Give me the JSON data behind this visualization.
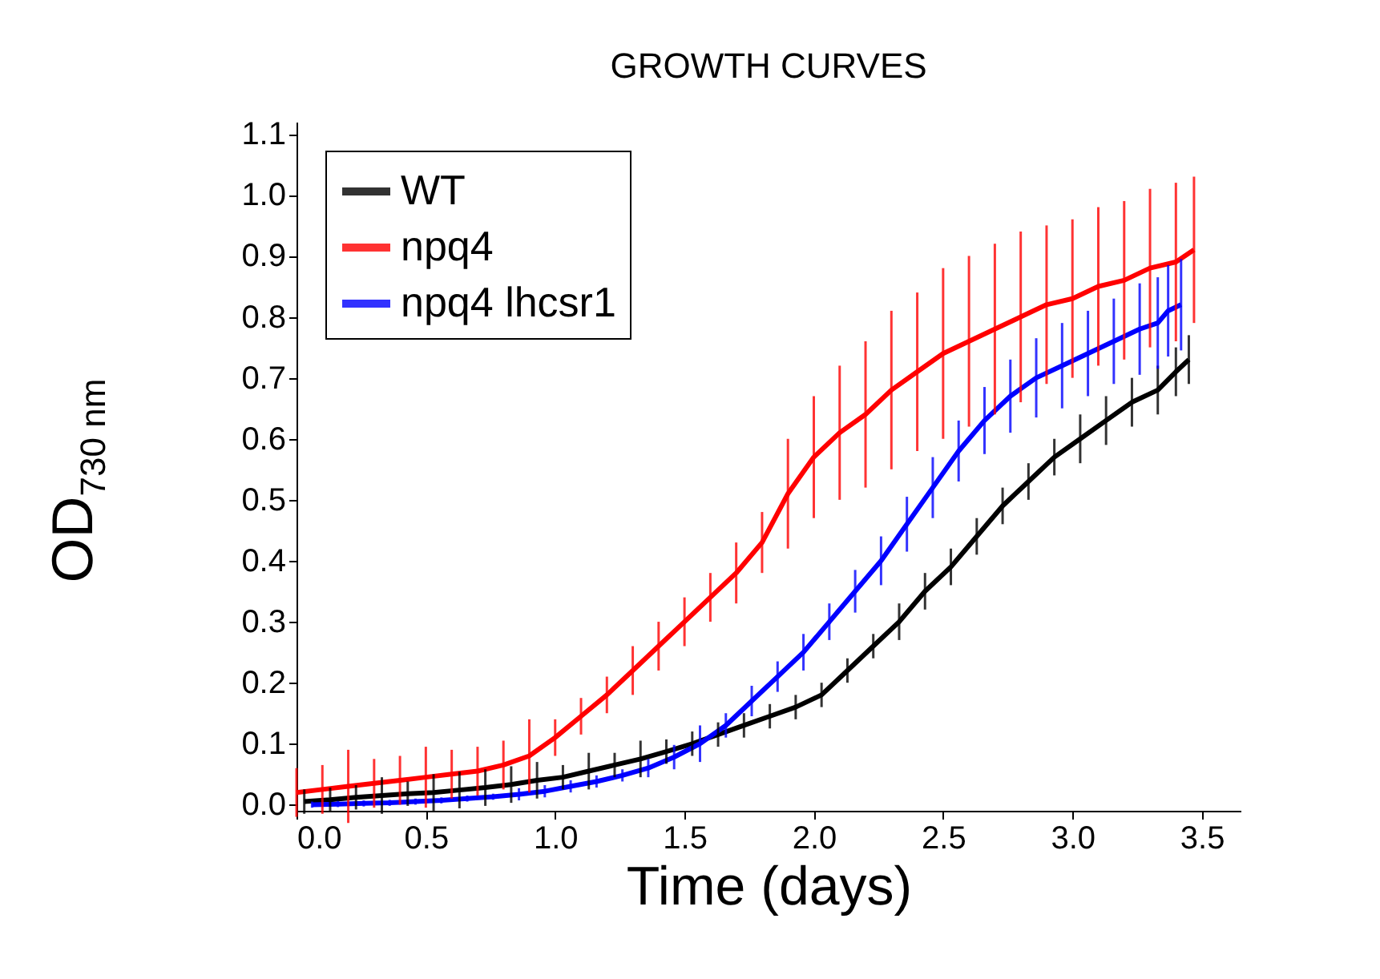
{
  "chart_data": {
    "type": "line",
    "title": "GROWTH CURVES",
    "xlabel": "Time (days)",
    "ylabel": "OD$_{730 nm}$",
    "x": [
      0,
      0.1,
      0.2,
      0.3,
      0.4,
      0.5,
      0.6,
      0.7,
      0.8,
      0.9,
      1.0,
      1.1,
      1.2,
      1.3,
      1.4,
      1.5,
      1.6,
      1.7,
      1.8,
      1.9,
      2.0,
      2.1,
      2.2,
      2.3,
      2.4,
      2.5,
      2.6,
      2.7,
      2.8,
      2.9,
      3.0,
      3.1,
      3.2,
      3.3,
      3.4,
      3.47
    ],
    "series": [
      {
        "name": "WT",
        "color": "#000000",
        "x": [
          0.03,
          0.13,
          0.23,
          0.33,
          0.43,
          0.53,
          0.63,
          0.73,
          0.83,
          0.93,
          1.03,
          1.13,
          1.23,
          1.33,
          1.43,
          1.53,
          1.63,
          1.73,
          1.83,
          1.93,
          2.03,
          2.13,
          2.23,
          2.33,
          2.43,
          2.53,
          2.63,
          2.73,
          2.83,
          2.93,
          3.03,
          3.13,
          3.23,
          3.33,
          3.4,
          3.45
        ],
        "values": [
          0.005,
          0.008,
          0.012,
          0.015,
          0.018,
          0.02,
          0.024,
          0.028,
          0.033,
          0.04,
          0.045,
          0.055,
          0.065,
          0.075,
          0.087,
          0.1,
          0.115,
          0.13,
          0.145,
          0.16,
          0.18,
          0.22,
          0.26,
          0.3,
          0.35,
          0.39,
          0.44,
          0.49,
          0.53,
          0.57,
          0.6,
          0.63,
          0.66,
          0.68,
          0.71,
          0.73
        ],
        "errors": [
          0.02,
          0.02,
          0.02,
          0.03,
          0.02,
          0.03,
          0.03,
          0.03,
          0.03,
          0.03,
          0.02,
          0.03,
          0.02,
          0.03,
          0.02,
          0.02,
          0.02,
          0.02,
          0.02,
          0.02,
          0.02,
          0.02,
          0.02,
          0.03,
          0.03,
          0.03,
          0.03,
          0.03,
          0.03,
          0.03,
          0.04,
          0.04,
          0.04,
          0.04,
          0.04,
          0.04
        ]
      },
      {
        "name": "npq4",
        "color": "#ff0000",
        "values": [
          0.02,
          0.025,
          0.03,
          0.035,
          0.04,
          0.045,
          0.05,
          0.055,
          0.065,
          0.08,
          0.11,
          0.145,
          0.18,
          0.22,
          0.26,
          0.3,
          0.34,
          0.38,
          0.43,
          0.51,
          0.57,
          0.61,
          0.64,
          0.68,
          0.71,
          0.74,
          0.76,
          0.78,
          0.8,
          0.82,
          0.83,
          0.85,
          0.86,
          0.88,
          0.89,
          0.91
        ],
        "errors": [
          0.04,
          0.04,
          0.06,
          0.04,
          0.04,
          0.05,
          0.04,
          0.04,
          0.04,
          0.06,
          0.03,
          0.03,
          0.03,
          0.04,
          0.04,
          0.04,
          0.04,
          0.05,
          0.05,
          0.09,
          0.1,
          0.11,
          0.12,
          0.13,
          0.13,
          0.14,
          0.14,
          0.14,
          0.14,
          0.13,
          0.13,
          0.13,
          0.13,
          0.13,
          0.13,
          0.12
        ]
      },
      {
        "name": "npq4 lhcsr1",
        "color": "#0000ff",
        "x": [
          0.06,
          0.16,
          0.26,
          0.36,
          0.46,
          0.56,
          0.66,
          0.76,
          0.86,
          0.96,
          1.06,
          1.16,
          1.26,
          1.36,
          1.46,
          1.56,
          1.66,
          1.76,
          1.86,
          1.96,
          2.06,
          2.16,
          2.26,
          2.36,
          2.46,
          2.56,
          2.66,
          2.76,
          2.86,
          2.96,
          3.06,
          3.16,
          3.26,
          3.33,
          3.37,
          3.42
        ],
        "values": [
          0,
          0.001,
          0.002,
          0.003,
          0.005,
          0.007,
          0.01,
          0.013,
          0.017,
          0.022,
          0.03,
          0.038,
          0.048,
          0.06,
          0.078,
          0.1,
          0.13,
          0.17,
          0.21,
          0.25,
          0.3,
          0.35,
          0.4,
          0.46,
          0.52,
          0.58,
          0.63,
          0.67,
          0.7,
          0.72,
          0.74,
          0.76,
          0.78,
          0.79,
          0.81,
          0.82
        ],
        "errors": [
          0.005,
          0.005,
          0.005,
          0.005,
          0.005,
          0.005,
          0.005,
          0.005,
          0.01,
          0.01,
          0.01,
          0.01,
          0.01,
          0.015,
          0.02,
          0.03,
          0.02,
          0.025,
          0.025,
          0.03,
          0.03,
          0.035,
          0.04,
          0.045,
          0.05,
          0.05,
          0.055,
          0.06,
          0.065,
          0.07,
          0.07,
          0.07,
          0.075,
          0.075,
          0.075,
          0.075
        ]
      }
    ],
    "xlim": [
      0,
      3.65
    ],
    "ylim": [
      -0.01,
      1.12
    ],
    "xticks": [
      {
        "value": 0,
        "label": "0.0"
      },
      {
        "value": 0.5,
        "label": "0.5"
      },
      {
        "value": 1,
        "label": "1.0"
      },
      {
        "value": 1.5,
        "label": "1.5"
      },
      {
        "value": 2,
        "label": "2.0"
      },
      {
        "value": 2.5,
        "label": "2.5"
      },
      {
        "value": 3,
        "label": "3.0"
      },
      {
        "value": 3.5,
        "label": "3.5"
      }
    ],
    "yticks": [
      {
        "value": 0,
        "label": "0.0"
      },
      {
        "value": 0.1,
        "label": "0.1"
      },
      {
        "value": 0.2,
        "label": "0.2"
      },
      {
        "value": 0.3,
        "label": "0.3"
      },
      {
        "value": 0.4,
        "label": "0.4"
      },
      {
        "value": 0.5,
        "label": "0.5"
      },
      {
        "value": 0.6,
        "label": "0.6"
      },
      {
        "value": 0.7,
        "label": "0.7"
      },
      {
        "value": 0.8,
        "label": "0.8"
      },
      {
        "value": 0.9,
        "label": "0.9"
      },
      {
        "value": 1,
        "label": "1.0"
      },
      {
        "value": 1.1,
        "label": "1.1"
      }
    ],
    "grid": false,
    "legend": "top left",
    "line_style": "solid"
  }
}
